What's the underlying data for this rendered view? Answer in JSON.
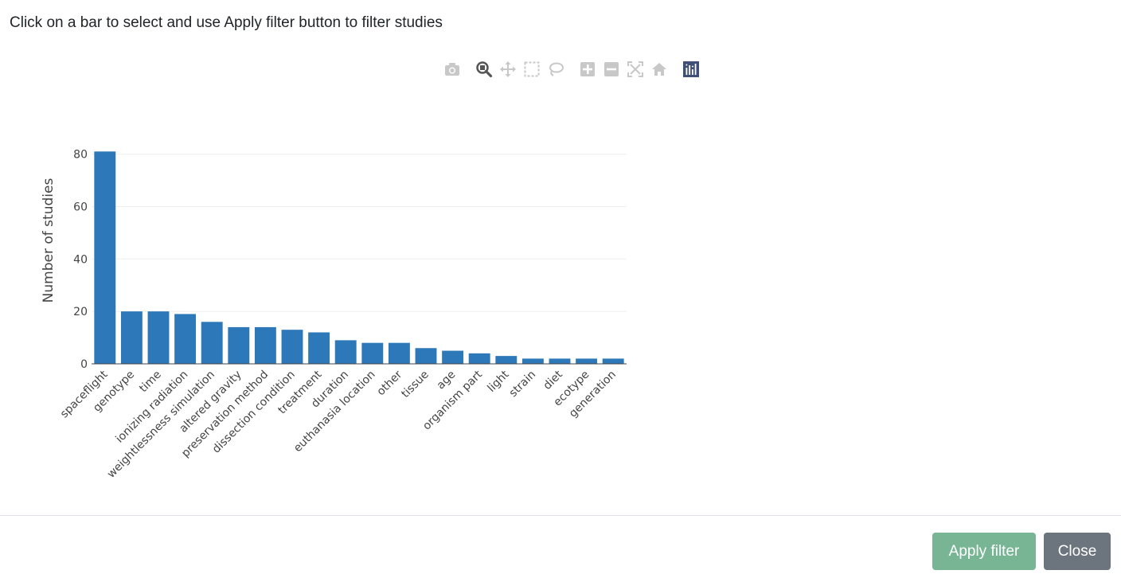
{
  "instructions": "Click on a bar to select and use Apply filter button to filter studies",
  "modebar": {
    "buttons": [
      {
        "name": "camera-icon",
        "tip": "Download plot as a png"
      },
      {
        "name": "zoom-icon",
        "tip": "Zoom"
      },
      {
        "name": "pan-icon",
        "tip": "Pan"
      },
      {
        "name": "box-select-icon",
        "tip": "Box Select"
      },
      {
        "name": "lasso-select-icon",
        "tip": "Lasso Select"
      },
      {
        "name": "zoom-in-icon",
        "tip": "Zoom in"
      },
      {
        "name": "zoom-out-icon",
        "tip": "Zoom out"
      },
      {
        "name": "autoscale-icon",
        "tip": "Autoscale"
      },
      {
        "name": "reset-axes-icon",
        "tip": "Reset axes"
      },
      {
        "name": "plotly-logo-icon",
        "tip": "Produced with Plotly"
      }
    ]
  },
  "chart_data": {
    "type": "bar",
    "categories": [
      "spaceflight",
      "genotype",
      "time",
      "ionizing radiation",
      "weightlessness simulation",
      "altered gravity",
      "preservation method",
      "dissection condition",
      "treatment",
      "duration",
      "euthanasia location",
      "other",
      "tissue",
      "age",
      "organism part",
      "light",
      "strain",
      "diet",
      "ecotype",
      "generation"
    ],
    "values": [
      81,
      20,
      20,
      19,
      16,
      14,
      14,
      13,
      12,
      9,
      8,
      8,
      6,
      5,
      4,
      3,
      2,
      2,
      2,
      2
    ],
    "ylabel": "Number of studies",
    "xlabel": "",
    "ylim": [
      0,
      82
    ],
    "yticks": [
      0,
      20,
      40,
      60,
      80
    ],
    "grid": true,
    "bar_color": "#2c78b8"
  },
  "footer": {
    "apply_label": "Apply filter",
    "close_label": "Close"
  },
  "colors": {
    "apply": "#77b594",
    "close": "#6c757d",
    "icon_inactive": "#c8c8c8",
    "icon_active": "#555555"
  }
}
